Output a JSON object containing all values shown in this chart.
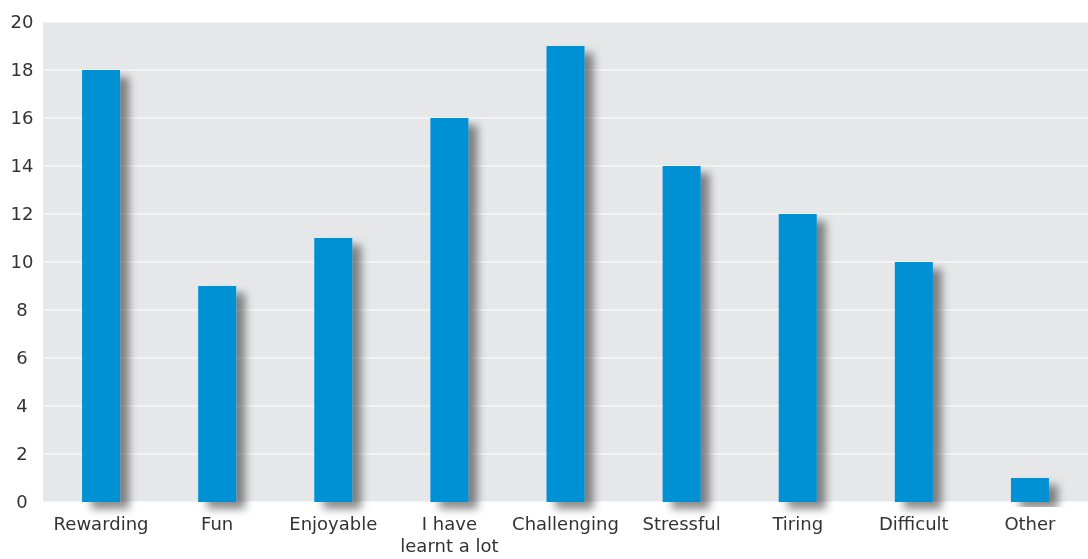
{
  "chart_data": {
    "type": "bar",
    "categories": [
      "Rewarding",
      "Fun",
      "Enjoyable",
      "I have learnt a lot",
      "Challenging",
      "Stressful",
      "Tiring",
      "Difficult",
      "Other"
    ],
    "values": [
      18,
      9,
      11,
      16,
      19,
      14,
      12,
      10,
      1
    ],
    "color": "#0091d5",
    "ylim": [
      0,
      20
    ],
    "yticks": [
      0,
      2,
      4,
      6,
      8,
      10,
      12,
      14,
      16,
      18,
      20
    ],
    "grid": "y"
  }
}
